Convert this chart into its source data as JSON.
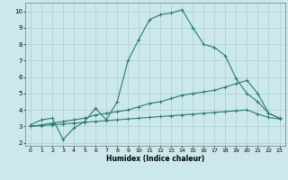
{
  "xlabel": "Humidex (Indice chaleur)",
  "background_color": "#cce8ec",
  "grid_color": "#aacdd4",
  "line_color": "#2a7a72",
  "xlim": [
    -0.5,
    23.5
  ],
  "ylim": [
    1.8,
    10.5
  ],
  "xticks": [
    0,
    1,
    2,
    3,
    4,
    5,
    6,
    7,
    8,
    9,
    10,
    11,
    12,
    13,
    14,
    15,
    16,
    17,
    18,
    19,
    20,
    21,
    22,
    23
  ],
  "yticks": [
    2,
    3,
    4,
    5,
    6,
    7,
    8,
    9,
    10
  ],
  "line1_x": [
    0,
    1,
    2,
    3,
    4,
    5,
    6,
    7,
    8,
    9,
    10,
    11,
    12,
    13,
    14,
    15,
    16,
    17,
    18,
    19,
    20,
    21,
    22,
    23
  ],
  "line1_y": [
    3.1,
    3.4,
    3.5,
    2.2,
    2.9,
    3.3,
    4.1,
    3.4,
    4.5,
    7.0,
    8.3,
    9.5,
    9.8,
    9.9,
    10.1,
    9.0,
    8.0,
    7.8,
    7.3,
    5.9,
    5.0,
    4.5,
    3.8,
    3.5
  ],
  "line2_x": [
    0,
    1,
    2,
    3,
    4,
    5,
    6,
    7,
    8,
    9,
    10,
    11,
    12,
    13,
    14,
    15,
    16,
    17,
    18,
    19,
    20,
    21,
    22,
    23
  ],
  "line2_y": [
    3.0,
    3.1,
    3.2,
    3.3,
    3.4,
    3.5,
    3.7,
    3.8,
    3.9,
    4.0,
    4.2,
    4.4,
    4.5,
    4.7,
    4.9,
    5.0,
    5.1,
    5.2,
    5.4,
    5.6,
    5.8,
    5.0,
    3.8,
    3.5
  ],
  "line3_x": [
    0,
    1,
    2,
    3,
    4,
    5,
    6,
    7,
    8,
    9,
    10,
    11,
    12,
    13,
    14,
    15,
    16,
    17,
    18,
    19,
    20,
    21,
    22,
    23
  ],
  "line3_y": [
    3.0,
    3.05,
    3.1,
    3.15,
    3.2,
    3.25,
    3.3,
    3.35,
    3.4,
    3.45,
    3.5,
    3.55,
    3.6,
    3.65,
    3.7,
    3.75,
    3.8,
    3.85,
    3.9,
    3.95,
    4.0,
    3.75,
    3.55,
    3.45
  ]
}
